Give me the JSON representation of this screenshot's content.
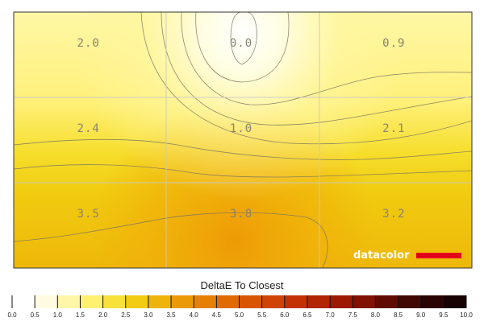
{
  "chart_data": {
    "type": "heatmap",
    "rows": 3,
    "cols": 3,
    "values": [
      [
        "2.0",
        "0.0",
        "0.9"
      ],
      [
        "2.4",
        "1.0",
        "2.1"
      ],
      [
        "3.5",
        "3.8",
        "3.2"
      ]
    ],
    "scale_title": "DeltaE To Closest",
    "scale_ticks": [
      "0.0",
      "0.5",
      "1.0",
      "1.5",
      "2.0",
      "2.5",
      "3.0",
      "3.5",
      "4.0",
      "4.5",
      "5.0",
      "5.5",
      "6.0",
      "6.5",
      "7.0",
      "7.5",
      "8.0",
      "8.5",
      "9.0",
      "9.5",
      "10.0"
    ],
    "scale_range": [
      0,
      10
    ],
    "grid": true,
    "contours": true,
    "logo": "datacolor",
    "colors": {
      "low": "#ffffff",
      "mid_low": "#fff27a",
      "mid": "#f3cf10",
      "high": "#e89a04",
      "logo_bar": "#e3001b"
    }
  }
}
